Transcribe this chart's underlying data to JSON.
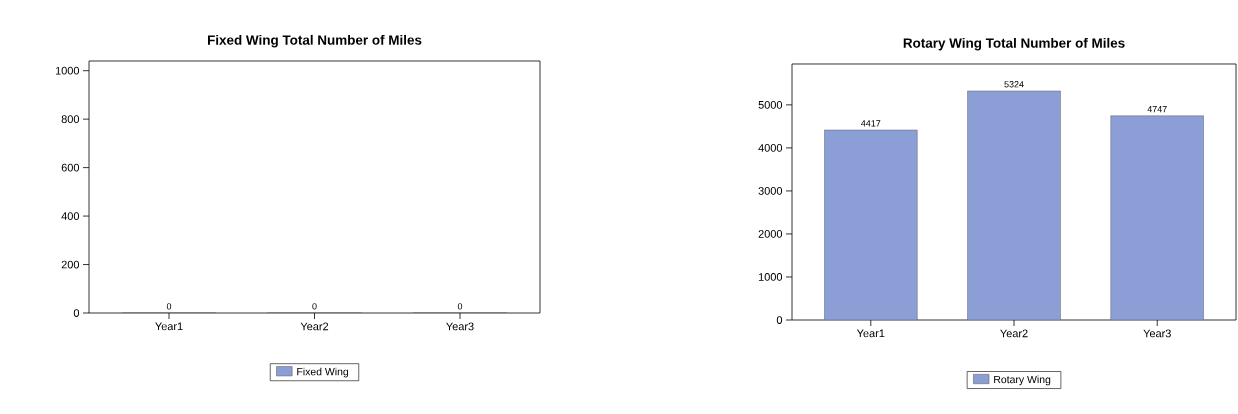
{
  "chart_data": [
    {
      "type": "bar",
      "title": "Fixed Wing Total Number of Miles",
      "categories": [
        "Year1",
        "Year2",
        "Year3"
      ],
      "series": [
        {
          "name": "Fixed Wing",
          "color": "#8c9ed6",
          "values": [
            0,
            0,
            0
          ]
        }
      ],
      "ylim": [
        0,
        1040
      ],
      "yticks": [
        0,
        200,
        400,
        600,
        800,
        1000
      ],
      "data_labels": true,
      "legend": "bottom"
    },
    {
      "type": "bar",
      "title": "Rotary Wing Total Number of Miles",
      "categories": [
        "Year1",
        "Year2",
        "Year3"
      ],
      "series": [
        {
          "name": "Rotary Wing",
          "color": "#8c9ed6",
          "values": [
            4417,
            5324,
            4747
          ]
        }
      ],
      "ylim": [
        0,
        5950
      ],
      "yticks": [
        0,
        1000,
        2000,
        3000,
        4000,
        5000
      ],
      "data_labels": true,
      "legend": "bottom"
    }
  ]
}
